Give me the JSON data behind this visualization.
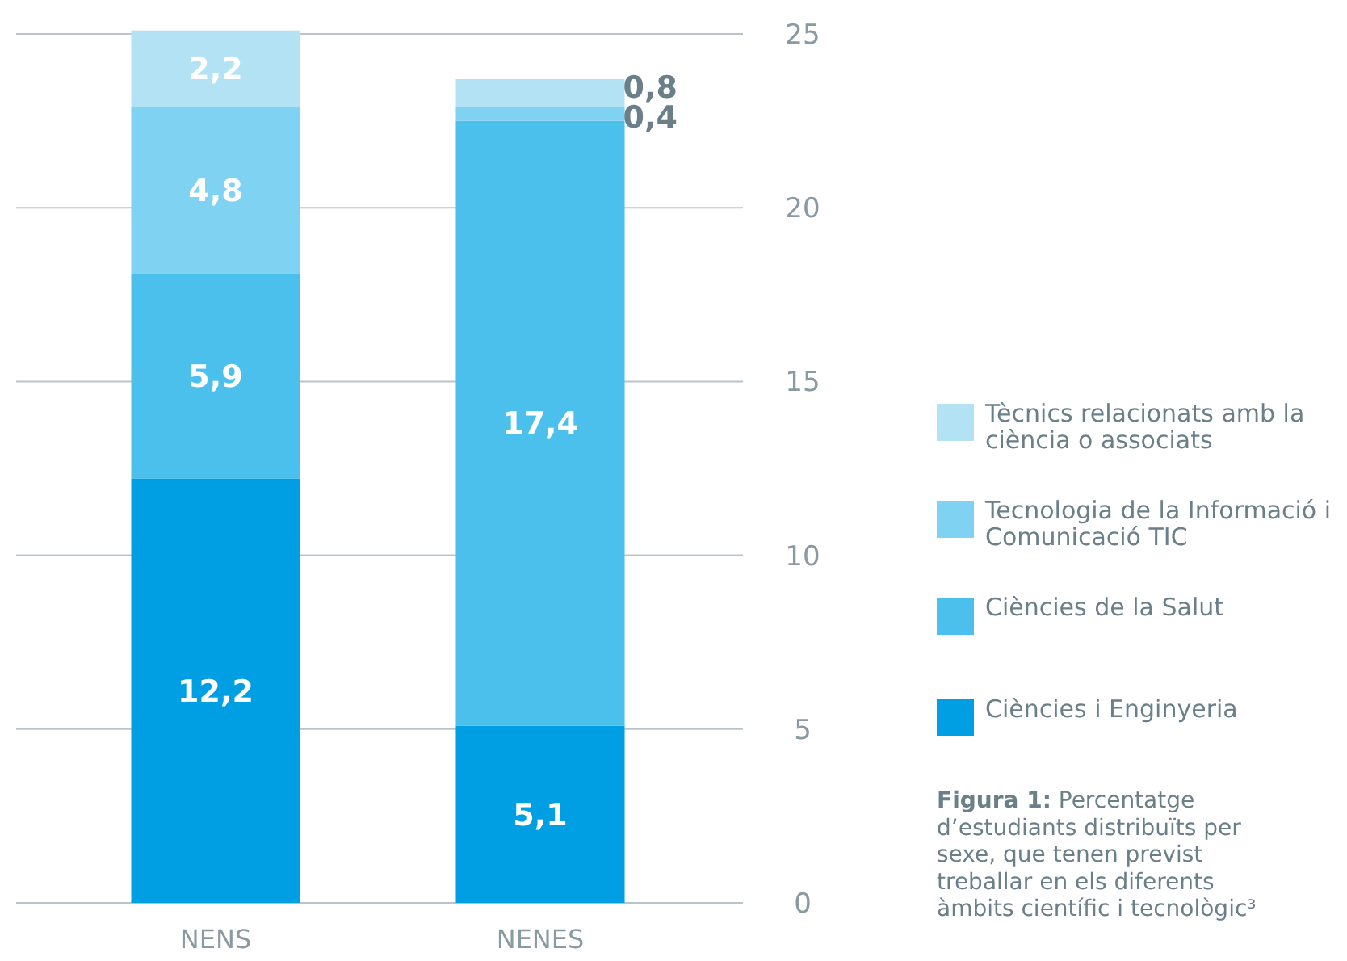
{
  "chart_data": {
    "type": "bar",
    "stacked": true,
    "categories": [
      "NENS",
      "NENES"
    ],
    "series": [
      {
        "name": "Ciències i Enginyeria",
        "color": "#009fe3",
        "values": [
          12.2,
          5.1
        ],
        "value_labels": [
          "12,2",
          "5,1"
        ]
      },
      {
        "name": "Ciències de la Salut",
        "color": "#4bc0ec",
        "values": [
          5.9,
          17.4
        ],
        "value_labels": [
          "5,9",
          "17,4"
        ]
      },
      {
        "name": "Tecnologia de la Informació i Comunicació TIC",
        "color": "#80d2f2",
        "values": [
          4.8,
          0.4
        ],
        "value_labels": [
          "4,8",
          "0,4"
        ]
      },
      {
        "name": "Tècnics relacionats amb la ciència o associats",
        "color": "#b3e2f5",
        "values": [
          2.2,
          0.8
        ],
        "value_labels": [
          "2,2",
          "0,8"
        ]
      }
    ],
    "ylim": [
      0,
      25
    ],
    "yticks": [
      0,
      5,
      10,
      15,
      20,
      25
    ],
    "grid": "y",
    "legend": "right",
    "annotations": [
      "Figura 1: Percentatge d’estudiants distribuïts per sexe, que tenen previst treballar en els diferents àmbits científic i tecnològic³"
    ]
  }
}
